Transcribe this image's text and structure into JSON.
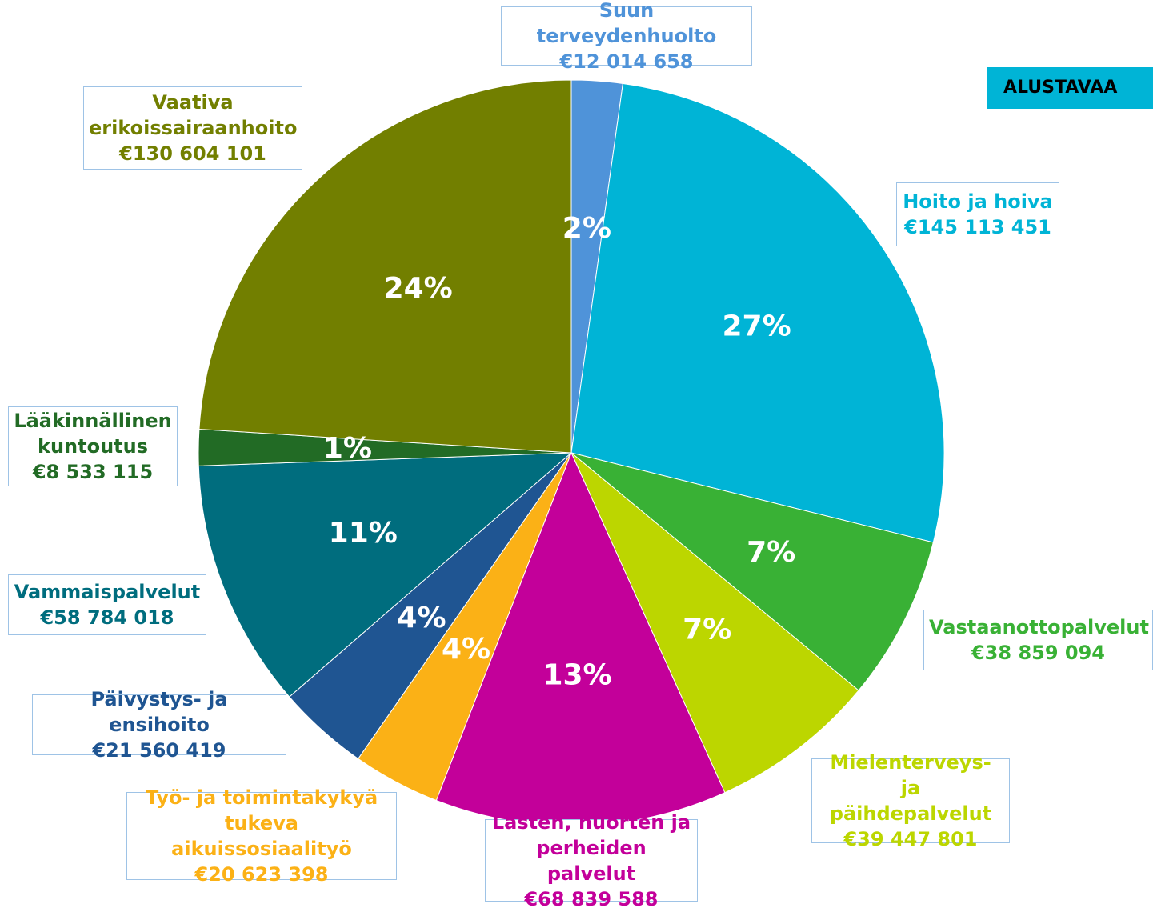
{
  "chart_data": {
    "type": "pie",
    "banner": "ALUSTAVAA",
    "categories": [
      "Suun terveydenhuolto",
      "Hoito ja hoiva",
      "Vastaanottopalvelut",
      "Mielenterveys- ja päihdepalvelut",
      "Lasten, nuorten ja perheiden palvelut",
      "Työ- ja toimintakykyä tukeva aikuissosiaalityö",
      "Päivystys- ja ensihoito",
      "Vammaispalvelut",
      "Lääkinnällinen kuntoutus",
      "Vaativa erikoissairaanhoito"
    ],
    "values": [
      12014658,
      145113451,
      38859094,
      39447801,
      68839588,
      20623398,
      21560419,
      58784018,
      8533115,
      130604101
    ],
    "value_labels": [
      "€12 014 658",
      "€145 113 451",
      "€38 859 094",
      "€39 447 801",
      "€68 839 588",
      "€20 623 398",
      "€21 560 419",
      "€58 784 018",
      "€8 533 115",
      "€130 604 101"
    ],
    "percent_labels": [
      "2%",
      "27%",
      "7%",
      "7%",
      "13%",
      "4%",
      "4%",
      "11%",
      "1%",
      "24%"
    ],
    "colors": [
      "#4f93d9",
      "#00b4d6",
      "#39b135",
      "#bcd600",
      "#c3009a",
      "#fbb116",
      "#1f5592",
      "#006d7e",
      "#226b25",
      "#727f00"
    ]
  }
}
